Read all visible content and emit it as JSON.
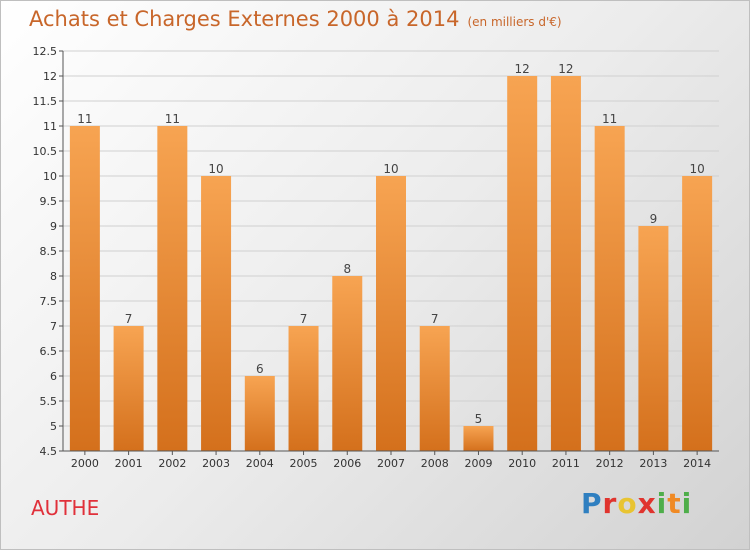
{
  "chart_data": {
    "type": "bar",
    "title": "Achats et Charges Externes 2000 à 2014",
    "subtitle": "(en milliers d'€)",
    "categories": [
      "2000",
      "2001",
      "2002",
      "2003",
      "2004",
      "2005",
      "2006",
      "2007",
      "2008",
      "2009",
      "2010",
      "2011",
      "2012",
      "2013",
      "2014"
    ],
    "values": [
      11,
      7,
      11,
      10,
      6,
      7,
      8,
      10,
      7,
      5,
      12,
      12,
      11,
      9,
      10
    ],
    "ylim": [
      4.5,
      12.5
    ],
    "yticks": [
      "4.5",
      "5",
      "5.5",
      "6",
      "6.5",
      "7",
      "7.5",
      "8",
      "8.5",
      "9",
      "9.5",
      "10",
      "10.5",
      "11",
      "11.5",
      "12",
      "12.5"
    ],
    "grid": true,
    "bar_color_top": "#f7a452",
    "bar_color_bottom": "#d4701c"
  },
  "footer": {
    "commune": "AUTHE",
    "logo": "Proxiti"
  }
}
